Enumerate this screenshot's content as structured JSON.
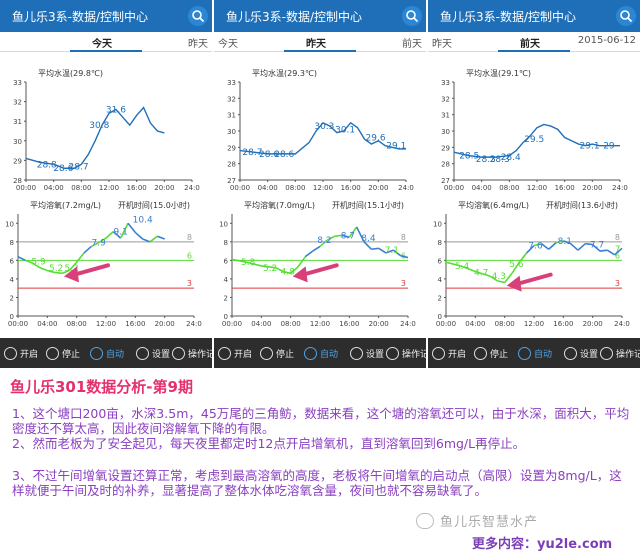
{
  "colors": {
    "header": "#1f6fb8",
    "toolbar": "#2d2d2d",
    "temp_line": "#1f6fb8",
    "do_line": "#3a7fd0",
    "do_on_line": "#55dd33",
    "threshold_6": "#55dd33",
    "threshold_3": "#e23a3a",
    "threshold_8": "#999999",
    "arrow": "#d9407a",
    "article_title": "#e5306f",
    "article_text": "#8a3fc0"
  },
  "panels": [
    {
      "title": "鱼儿乐3系-数据/控制中心",
      "tabs": {
        "left": "",
        "mid": "今天",
        "right": "昨天"
      },
      "toolbar": [
        {
          "label": "开启",
          "icon": "play-icon"
        },
        {
          "label": "停止",
          "icon": "pause-icon"
        },
        {
          "label": "自动",
          "icon": "auto-icon",
          "active": true
        },
        {
          "label": "设置",
          "icon": "gear-icon"
        },
        {
          "label": "操作记录",
          "icon": "list-icon"
        }
      ]
    },
    {
      "title": "鱼儿乐3系-数据/控制中心",
      "tabs": {
        "left": "今天",
        "mid": "昨天",
        "right": "前天"
      },
      "toolbar": [
        {
          "label": "开启",
          "icon": "play-icon"
        },
        {
          "label": "停止",
          "icon": "pause-icon"
        },
        {
          "label": "自动",
          "icon": "auto-icon",
          "active": true
        },
        {
          "label": "设置",
          "icon": "gear-icon"
        },
        {
          "label": "操作记录",
          "icon": "list-icon"
        }
      ]
    },
    {
      "title": "鱼儿乐3系-数据/控制中心",
      "tabs": {
        "left": "昨天",
        "mid": "前天",
        "right": "2015-06-12"
      },
      "toolbar": [
        {
          "label": "开启",
          "icon": "play-icon"
        },
        {
          "label": "停止",
          "icon": "pause-icon"
        },
        {
          "label": "自动",
          "icon": "auto-icon",
          "active": true
        },
        {
          "label": "设置",
          "icon": "gear-icon"
        },
        {
          "label": "操作记录",
          "icon": "list-icon"
        }
      ]
    }
  ],
  "chart_data": [
    {
      "type": "line",
      "title": "平均水温(29.8℃)",
      "ylim": [
        28,
        33
      ],
      "yticks": [
        28,
        29,
        30,
        31,
        32,
        33
      ],
      "xlim": [
        0,
        24
      ],
      "xticks": [
        "00:00",
        "04:00",
        "08:00",
        "12:00",
        "16:00",
        "20:00",
        "24:0"
      ],
      "series": [
        {
          "x": [
            0,
            2,
            4,
            5.5,
            7,
            8,
            9,
            10,
            11,
            12,
            13,
            14,
            15,
            16,
            17,
            18,
            19,
            20
          ],
          "y": [
            29.1,
            28.9,
            28.8,
            28.6,
            28.6,
            28.8,
            29.3,
            30.0,
            30.8,
            31.4,
            31.6,
            31.2,
            30.8,
            31.3,
            31.7,
            30.9,
            30.5,
            30.4
          ]
        }
      ],
      "data_labels": [
        {
          "x": 3,
          "y": 28.8,
          "text": "28.8"
        },
        {
          "x": 5.4,
          "y": 28.6,
          "text": "28.6"
        },
        {
          "x": 7.6,
          "y": 28.7,
          "text": "28.7"
        },
        {
          "x": 10.6,
          "y": 30.8,
          "text": "30.8"
        },
        {
          "x": 13,
          "y": 31.6,
          "text": "31.6"
        }
      ]
    },
    {
      "type": "line",
      "title": "平均溶氧(7.2mg/L)",
      "subtitle": "开机时间(15.0小时)",
      "ylim": [
        0,
        11
      ],
      "yticks": [
        0,
        2,
        4,
        6,
        8,
        10
      ],
      "xlim": [
        0,
        24
      ],
      "xticks": [
        "00:00",
        "04:00",
        "08:00",
        "12:00",
        "16:00",
        "20:00",
        "24:0"
      ],
      "series": [
        {
          "x": [
            0,
            1,
            2,
            3,
            4,
            5,
            6,
            7,
            8,
            9,
            10,
            11,
            12,
            13,
            14,
            15,
            16,
            17,
            18,
            19,
            20
          ],
          "y": [
            6.4,
            6.0,
            5.7,
            5.2,
            4.9,
            4.7,
            4.6,
            4.9,
            5.8,
            6.8,
            7.5,
            7.9,
            8.4,
            9.1,
            8.4,
            10.0,
            9.0,
            8.3,
            8.0,
            8.6,
            8.3
          ]
        }
      ],
      "data_labels": [
        {
          "x": 2.8,
          "y": 5.9,
          "text": "5.9"
        },
        {
          "x": 5.2,
          "y": 5.2,
          "text": "5.2"
        },
        {
          "x": 7.3,
          "y": 5.2,
          "text": "5.2"
        },
        {
          "x": 11,
          "y": 7.9,
          "text": "7.9"
        },
        {
          "x": 14,
          "y": 9.1,
          "text": "9.1"
        },
        {
          "x": 17,
          "y": 10.4,
          "text": "10.4"
        }
      ],
      "thresholds": [
        {
          "y": 8,
          "label": "8"
        },
        {
          "y": 6,
          "label": "6"
        },
        {
          "y": 3,
          "label": "3"
        }
      ]
    },
    {
      "type": "line",
      "title": "平均水温(29.3℃)",
      "ylim": [
        27,
        33
      ],
      "yticks": [
        27,
        28,
        29,
        30,
        31,
        32,
        33
      ],
      "xlim": [
        0,
        24
      ],
      "xticks": [
        "00:00",
        "04:00",
        "08:00",
        "12:00",
        "16:00",
        "20:00",
        "24:0"
      ],
      "series": [
        {
          "x": [
            0,
            2,
            4,
            6,
            8,
            10,
            11,
            12,
            13,
            14,
            15,
            16,
            17,
            18,
            19,
            20,
            21,
            22,
            23,
            24
          ],
          "y": [
            28.8,
            28.7,
            28.6,
            28.6,
            28.6,
            29.3,
            30.0,
            30.5,
            30.3,
            29.9,
            30.0,
            30.5,
            30.2,
            29.5,
            29.2,
            29.4,
            29.1,
            29.0,
            28.9,
            28.9
          ]
        }
      ],
      "data_labels": [
        {
          "x": 1.8,
          "y": 28.7,
          "text": "28.7"
        },
        {
          "x": 4.2,
          "y": 28.6,
          "text": "28.6"
        },
        {
          "x": 6.4,
          "y": 28.6,
          "text": "28.6"
        },
        {
          "x": 12.2,
          "y": 30.3,
          "text": "30.3"
        },
        {
          "x": 15.2,
          "y": 30.1,
          "text": "30.1"
        },
        {
          "x": 19.6,
          "y": 29.6,
          "text": "29.6"
        },
        {
          "x": 22.6,
          "y": 29.1,
          "text": "29.1"
        }
      ]
    },
    {
      "type": "line",
      "title": "平均溶氧(7.0mg/L)",
      "subtitle": "开机时间(15.1小时)",
      "ylim": [
        0,
        11
      ],
      "yticks": [
        0,
        2,
        4,
        6,
        8,
        10
      ],
      "xlim": [
        0,
        24
      ],
      "xticks": [
        "00:00",
        "04:00",
        "08:00",
        "12:00",
        "16:00",
        "20:00",
        "24:0"
      ],
      "series": [
        {
          "x": [
            0,
            2,
            4,
            6,
            7,
            8,
            9,
            10,
            11,
            12,
            13,
            14,
            15,
            16,
            17,
            18,
            19,
            20,
            21,
            22,
            23,
            24
          ],
          "y": [
            6.1,
            5.8,
            5.4,
            5.2,
            4.8,
            4.6,
            5.3,
            6.4,
            7.0,
            7.5,
            8.2,
            8.6,
            8.7,
            8.5,
            9.6,
            8.0,
            7.2,
            7.3,
            6.8,
            7.1,
            6.5,
            6.3
          ]
        }
      ],
      "data_labels": [
        {
          "x": 2.2,
          "y": 5.8,
          "text": "5.8"
        },
        {
          "x": 5.2,
          "y": 5.2,
          "text": "5.2"
        },
        {
          "x": 7.6,
          "y": 4.8,
          "text": "4.8"
        },
        {
          "x": 12.6,
          "y": 8.2,
          "text": "8.2"
        },
        {
          "x": 15.8,
          "y": 8.7,
          "text": "8.7"
        },
        {
          "x": 18.6,
          "y": 8.4,
          "text": "8.4"
        },
        {
          "x": 21.8,
          "y": 7.1,
          "text": "7.1"
        }
      ],
      "thresholds": [
        {
          "y": 8,
          "label": "8"
        },
        {
          "y": 6,
          "label": "6"
        },
        {
          "y": 3,
          "label": "3"
        }
      ]
    },
    {
      "type": "line",
      "title": "平均水温(29.1℃)",
      "ylim": [
        27,
        33
      ],
      "yticks": [
        27,
        28,
        29,
        30,
        31,
        32,
        33
      ],
      "xlim": [
        0,
        24
      ],
      "xticks": [
        "00:00",
        "04:00",
        "08:00",
        "12:00",
        "16:00",
        "20:00",
        "24:0"
      ],
      "series": [
        {
          "x": [
            0,
            2,
            4,
            6,
            8,
            9,
            10,
            11,
            12,
            13,
            14,
            15,
            16,
            17,
            18,
            19,
            20,
            21,
            22,
            23,
            24
          ],
          "y": [
            28.7,
            28.5,
            28.4,
            28.4,
            28.5,
            28.8,
            29.3,
            29.7,
            30.2,
            30.4,
            30.3,
            30.1,
            29.6,
            29.4,
            29.2,
            29.1,
            29.2,
            29.1,
            29.1,
            29.1,
            29.1
          ]
        }
      ],
      "data_labels": [
        {
          "x": 2.2,
          "y": 28.5,
          "text": "28.5"
        },
        {
          "x": 4.6,
          "y": 28.3,
          "text": "28.3"
        },
        {
          "x": 6.6,
          "y": 28.3,
          "text": "28.3"
        },
        {
          "x": 8.2,
          "y": 28.4,
          "text": "28.4"
        },
        {
          "x": 11.6,
          "y": 29.5,
          "text": "29.5"
        },
        {
          "x": 19.6,
          "y": 29.1,
          "text": "29.1"
        },
        {
          "x": 22.4,
          "y": 29.1,
          "text": "29"
        }
      ]
    },
    {
      "type": "line",
      "title": "平均溶氧(6.4mg/L)",
      "subtitle": "开机时间(13.6小时)",
      "ylim": [
        0,
        11
      ],
      "yticks": [
        0,
        2,
        4,
        6,
        8,
        10
      ],
      "xlim": [
        0,
        24
      ],
      "xticks": [
        "00:00",
        "04:00",
        "08:00",
        "12:00",
        "16:00",
        "20:00",
        "24:0"
      ],
      "series": [
        {
          "x": [
            0,
            2,
            4,
            6,
            7,
            8,
            9,
            10,
            11,
            12,
            13,
            14,
            15,
            16,
            17,
            18,
            19,
            20,
            21,
            22,
            23,
            24
          ],
          "y": [
            5.8,
            5.4,
            4.8,
            4.3,
            3.8,
            3.6,
            4.6,
            5.8,
            6.8,
            7.6,
            7.8,
            7.2,
            7.9,
            8.1,
            7.8,
            7.1,
            7.8,
            7.7,
            7.0,
            7.1,
            6.6,
            7.3
          ]
        }
      ],
      "data_labels": [
        {
          "x": 2.2,
          "y": 5.4,
          "text": "5.4"
        },
        {
          "x": 4.8,
          "y": 4.7,
          "text": "4.7"
        },
        {
          "x": 7.2,
          "y": 4.3,
          "text": "4.3"
        },
        {
          "x": 9.6,
          "y": 5.6,
          "text": "5.6"
        },
        {
          "x": 12.2,
          "y": 7.6,
          "text": "7.6"
        },
        {
          "x": 16.2,
          "y": 8.1,
          "text": "8.1"
        },
        {
          "x": 20.6,
          "y": 7.7,
          "text": "7.7"
        },
        {
          "x": 23.4,
          "y": 7.2,
          "text": "7"
        }
      ],
      "thresholds": [
        {
          "y": 8,
          "label": "8"
        },
        {
          "y": 6,
          "label": "6"
        },
        {
          "y": 3,
          "label": "3"
        }
      ]
    }
  ],
  "article": {
    "title": "鱼儿乐301数据分析-第9期",
    "paragraphs": [
      "1、这个塘口200亩，水深3.5m，45万尾的三角鲂，数据来看，这个塘的溶氧还可以，由于水深，面积大，平均密度还不算太高，因此夜间溶解氧下降的有限。",
      "2、然而老板为了安全起见，每天夜里都定时12点开启增氧机，直到溶氧回到6mg/L再停止。",
      "3、不过午间增氧设置还算正常，考虑到最高溶氧的高度，老板将午间增氧的启动点（高限）设置为8mg/L，这样就便于午间及时的补养，显著提高了整体水体吃溶氧含量，夜间也就不容易缺氧了。"
    ]
  },
  "watermark": "鱼儿乐智慧水产",
  "more_content": "更多内容：yu2le.com"
}
